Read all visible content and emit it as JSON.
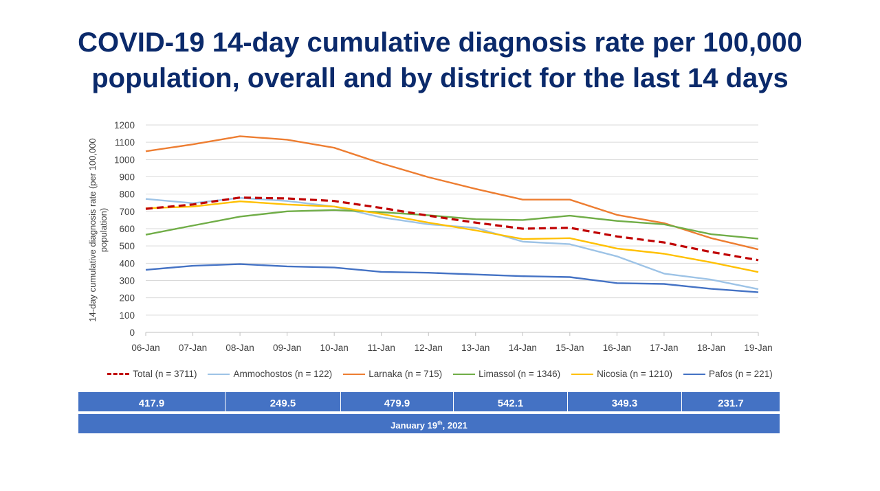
{
  "title": {
    "line1": "COVID-19 14-day cumulative diagnosis rate per 100,000",
    "line2": "population, overall and by district for the last 14 days"
  },
  "chart_data": {
    "type": "line",
    "ylabel_line1": "14-day cumulative diagnosis rate (per 100,000",
    "ylabel_line2": "population)",
    "ylim": [
      0,
      1200
    ],
    "yticks": [
      0,
      100,
      200,
      300,
      400,
      500,
      600,
      700,
      800,
      900,
      1000,
      1100,
      1200
    ],
    "grid": true,
    "legend_position": "bottom",
    "categories": [
      "06-Jan",
      "07-Jan",
      "08-Jan",
      "09-Jan",
      "10-Jan",
      "11-Jan",
      "12-Jan",
      "13-Jan",
      "14-Jan",
      "15-Jan",
      "16-Jan",
      "17-Jan",
      "18-Jan",
      "19-Jan"
    ],
    "series": [
      {
        "name": "Total (n = 3711)",
        "color": "#c00000",
        "dashed": true,
        "values": [
          715,
          740,
          780,
          775,
          760,
          720,
          675,
          635,
          600,
          605,
          555,
          520,
          465,
          418
        ]
      },
      {
        "name": "Ammochostos (n = 122)",
        "color": "#9dc3e6",
        "dashed": false,
        "values": [
          772,
          748,
          778,
          760,
          728,
          665,
          625,
          605,
          525,
          510,
          440,
          340,
          305,
          250
        ]
      },
      {
        "name": "Larnaka (n = 715)",
        "color": "#ed7d31",
        "dashed": false,
        "values": [
          1048,
          1088,
          1135,
          1115,
          1068,
          978,
          898,
          830,
          768,
          768,
          680,
          632,
          545,
          480
        ]
      },
      {
        "name": "Limassol (n = 1346)",
        "color": "#70ad47",
        "dashed": false,
        "values": [
          565,
          618,
          670,
          700,
          708,
          695,
          678,
          655,
          650,
          675,
          645,
          625,
          568,
          542
        ]
      },
      {
        "name": "Nicosia (n = 1210)",
        "color": "#ffc000",
        "dashed": false,
        "values": [
          718,
          728,
          758,
          740,
          728,
          685,
          635,
          590,
          540,
          545,
          485,
          455,
          405,
          349
        ]
      },
      {
        "name": "Pafos (n = 221)",
        "color": "#4472c4",
        "dashed": false,
        "values": [
          362,
          385,
          395,
          382,
          375,
          350,
          345,
          335,
          325,
          320,
          285,
          280,
          252,
          232
        ]
      }
    ]
  },
  "table": {
    "values": [
      "417.9",
      "249.5",
      "479.9",
      "542.1",
      "349.3",
      "231.7"
    ],
    "date_main": "January 19",
    "date_sup": "th",
    "date_tail": ", 2021"
  }
}
